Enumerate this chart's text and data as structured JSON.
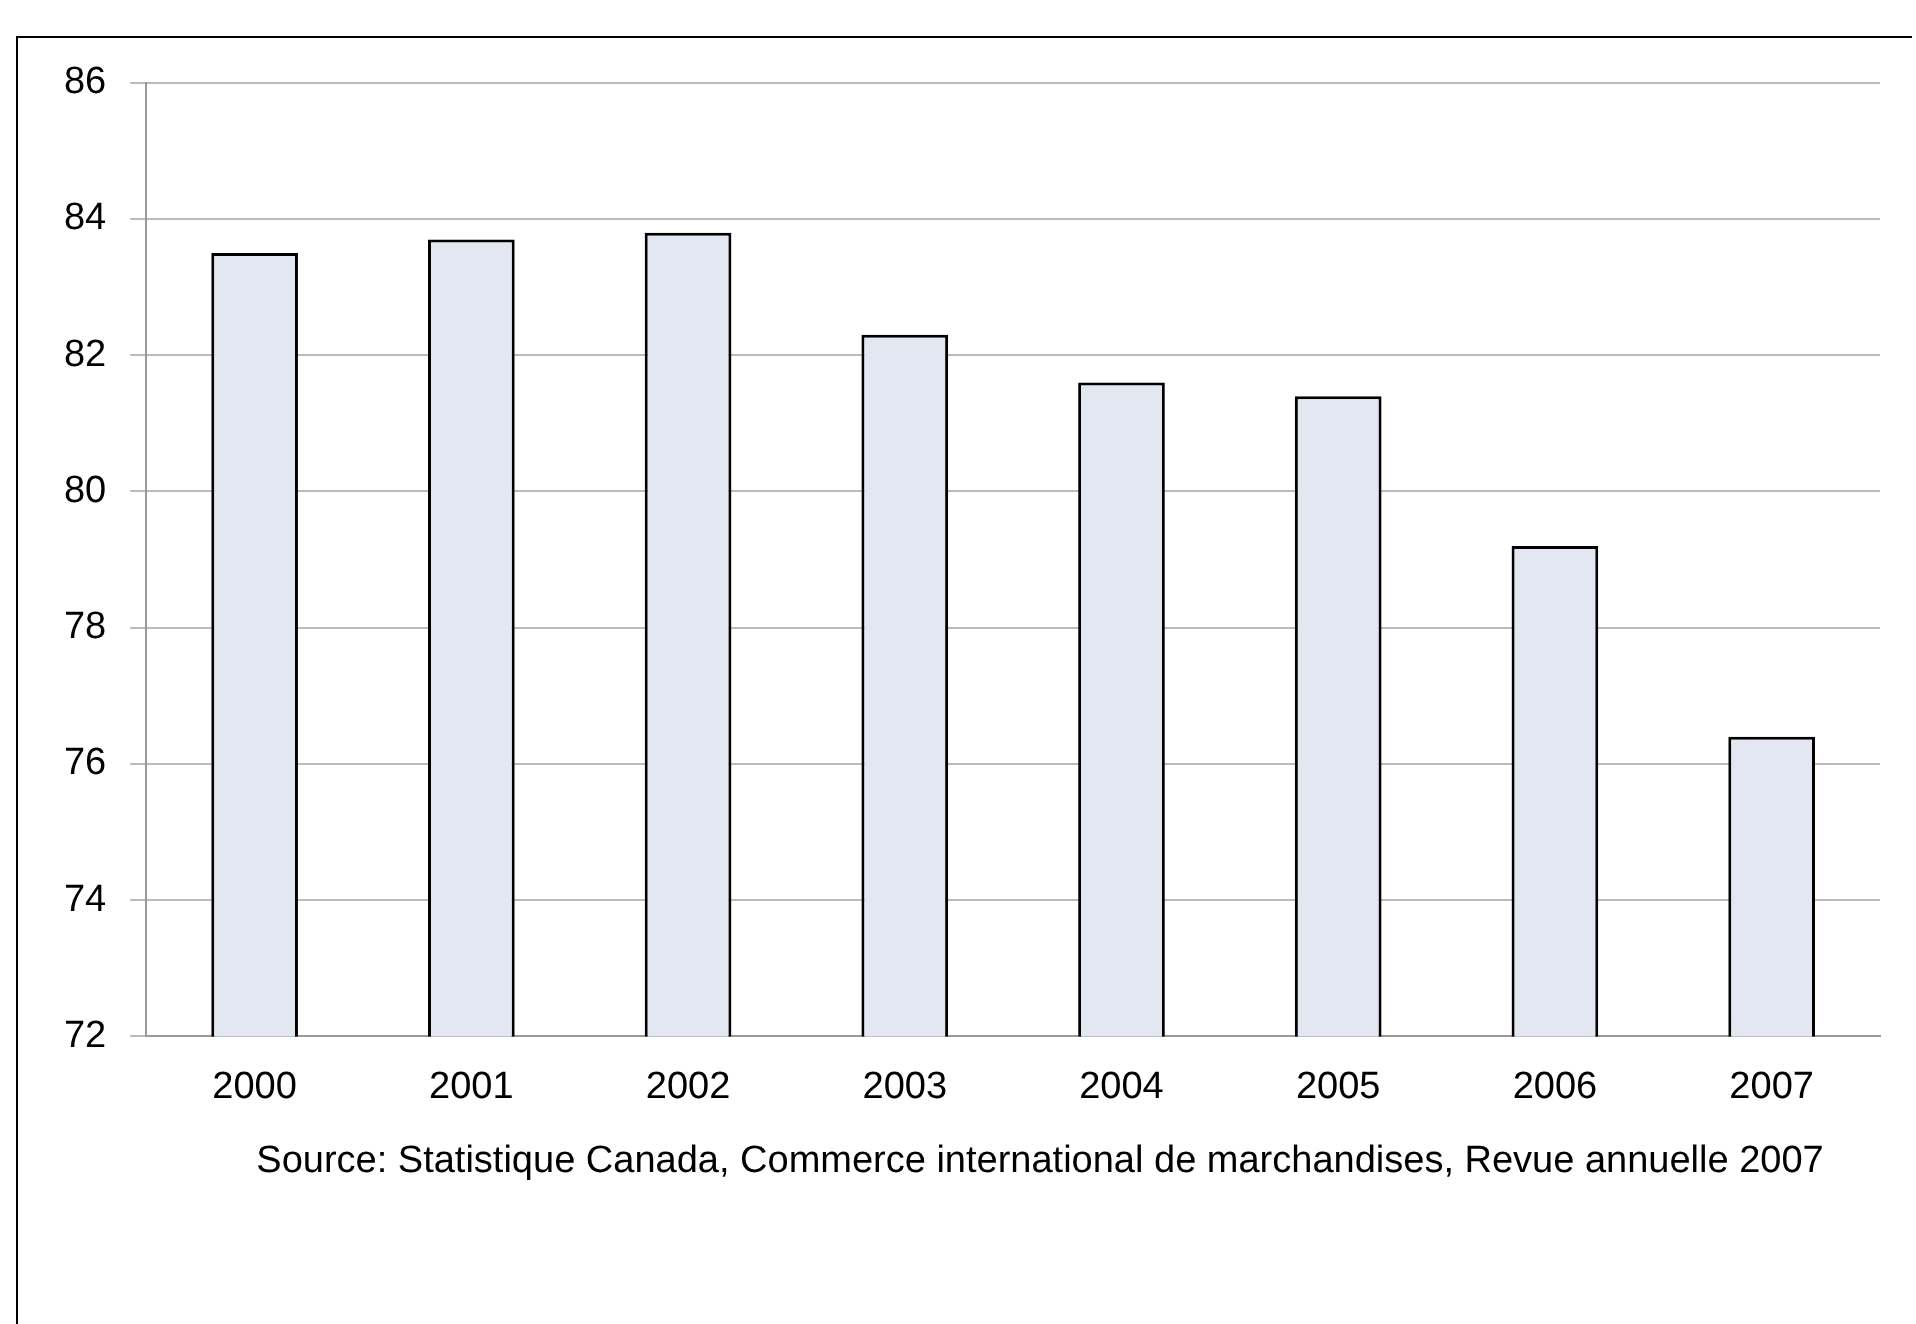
{
  "chart_data": {
    "type": "bar",
    "categories": [
      "2000",
      "2001",
      "2002",
      "2003",
      "2004",
      "2005",
      "2006",
      "2007"
    ],
    "values": [
      83.5,
      83.7,
      83.8,
      82.3,
      81.6,
      81.4,
      79.2,
      76.4
    ],
    "color": "#e3e7f2",
    "ylim": [
      72,
      86
    ],
    "yticks": [
      72,
      74,
      76,
      78,
      80,
      82,
      84,
      86
    ],
    "grid": "y",
    "legend": false,
    "annotations": [
      "Source: Statistique Canada, Commerce international de marchandises, Revue annuelle 2007"
    ]
  }
}
